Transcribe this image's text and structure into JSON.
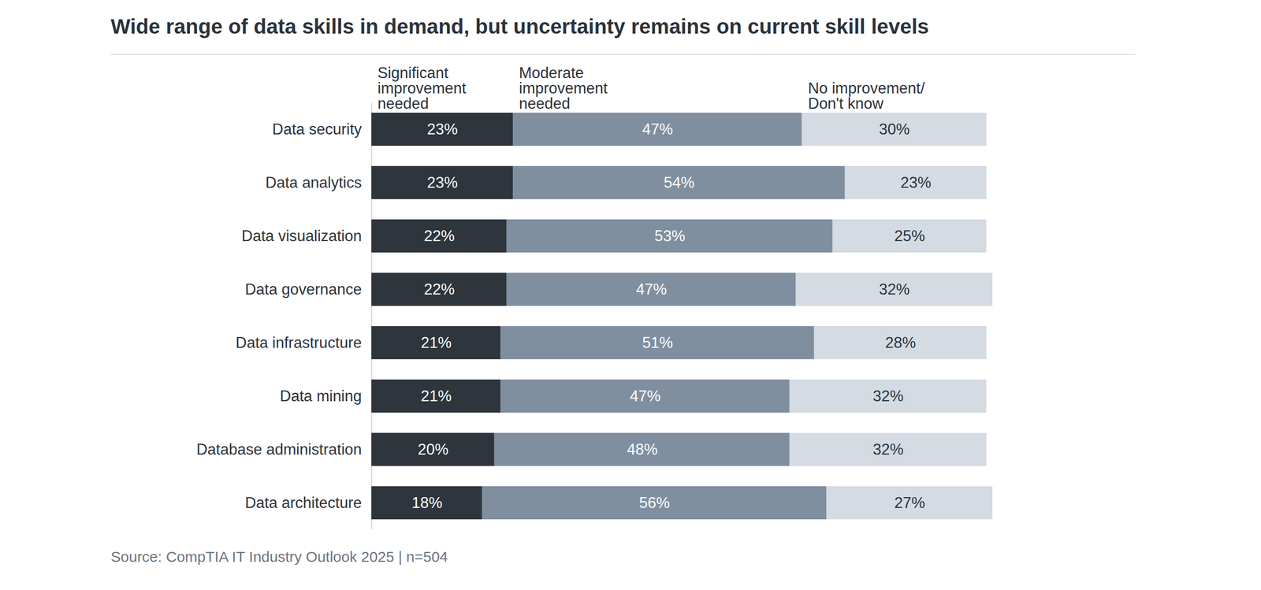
{
  "chart_data": {
    "type": "bar",
    "title": "Wide range of data skills in demand, but uncertainty remains on current skill levels",
    "caption": "Source: CompTIA IT Industry Outlook 2025 | n=504",
    "orientation": "horizontal",
    "stacked": true,
    "data_labels": true,
    "tick_labels": "y",
    "categories": [
      "Data security",
      "Data analytics",
      "Data visualization",
      "Data governance",
      "Data infrastructure",
      "Data mining",
      "Database administration",
      "Data architecture"
    ],
    "xlim": [
      0,
      101
    ],
    "series": [
      {
        "name": "Significant improvement needed",
        "color": "#2e353c",
        "values": [
          23,
          23,
          22,
          22,
          21,
          21,
          20,
          18
        ],
        "value_labels": [
          "23%",
          "23%",
          "22%",
          "22%",
          "21%",
          "21%",
          "20%",
          "18%"
        ]
      },
      {
        "name": "Moderate improvement needed",
        "color": "#7f8fa0",
        "values": [
          47,
          54,
          53,
          47,
          51,
          47,
          48,
          56
        ],
        "value_labels": [
          "47%",
          "54%",
          "53%",
          "47%",
          "51%",
          "47%",
          "48%",
          "56%"
        ]
      },
      {
        "name": "No improvement/ Don't know",
        "color": "#d4dbe2",
        "values": [
          30,
          23,
          25,
          32,
          28,
          32,
          32,
          27
        ],
        "value_labels": [
          "30%",
          "23%",
          "25%",
          "32%",
          "28%",
          "32%",
          "32%",
          "27%"
        ]
      }
    ]
  }
}
